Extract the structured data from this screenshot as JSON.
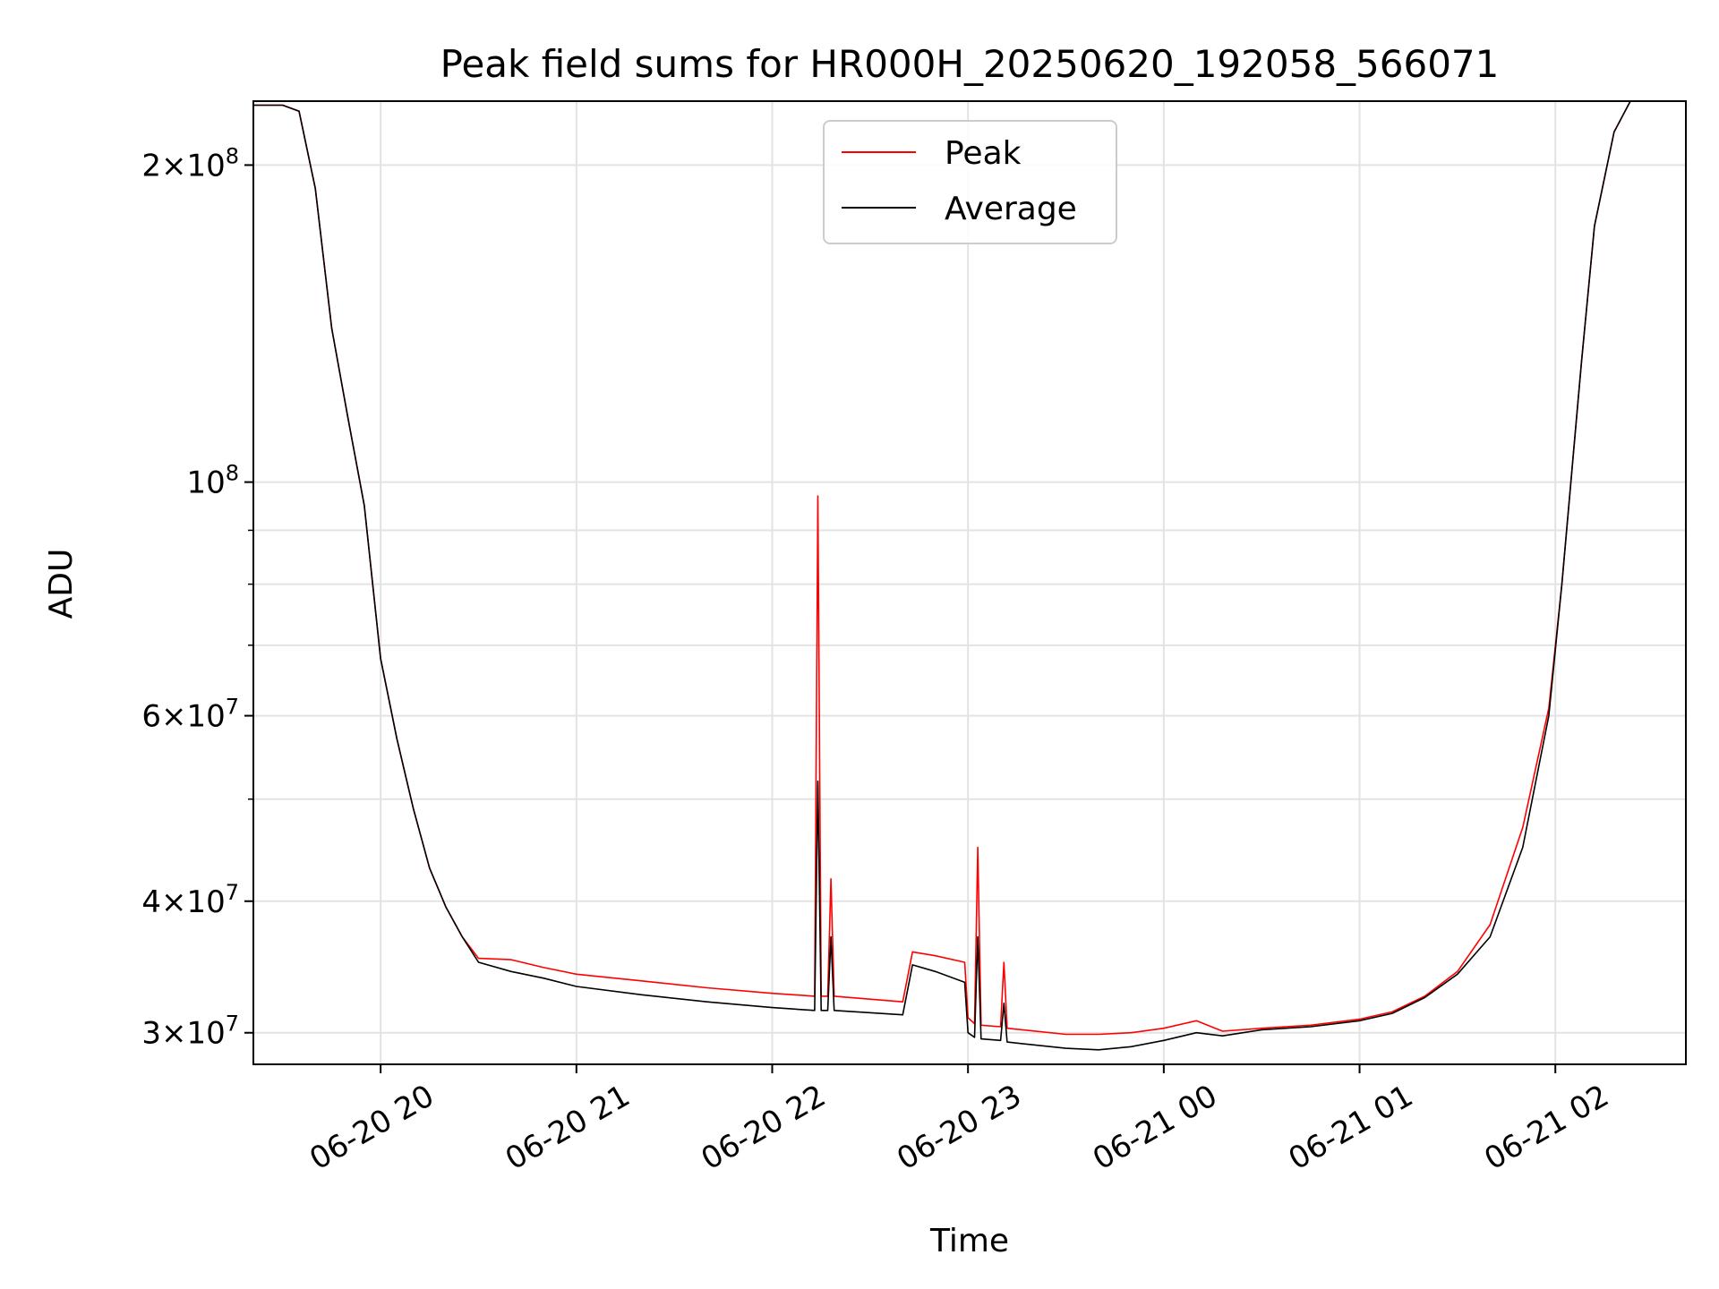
{
  "chart_data": {
    "type": "line",
    "title": "Peak field sums for HR000H_20250620_192058_566071",
    "xlabel": "Time",
    "ylabel": "ADU",
    "yscale": "log",
    "grid": true,
    "legend_placement": "upper center",
    "xlim": [
      "2025-06-20 19:21",
      "2025-06-21 02:40"
    ],
    "ylim": [
      28000000,
      230000000
    ],
    "x_ticks": [
      {
        "value": "2025-06-20 20:00",
        "label": "06-20 20"
      },
      {
        "value": "2025-06-20 21:00",
        "label": "06-20 21"
      },
      {
        "value": "2025-06-20 22:00",
        "label": "06-20 22"
      },
      {
        "value": "2025-06-20 23:00",
        "label": "06-20 23"
      },
      {
        "value": "2025-06-21 00:00",
        "label": "06-21 00"
      },
      {
        "value": "2025-06-21 01:00",
        "label": "06-21 01"
      },
      {
        "value": "2025-06-21 02:00",
        "label": "06-21 02"
      }
    ],
    "y_ticks": [
      {
        "value": 30000000,
        "mantissa": "3",
        "exp": "7"
      },
      {
        "value": 40000000,
        "mantissa": "4",
        "exp": "7"
      },
      {
        "value": 60000000,
        "mantissa": "6",
        "exp": "7"
      },
      {
        "value": 100000000,
        "mantissa": "",
        "exp": "8"
      },
      {
        "value": 200000000,
        "mantissa": "2",
        "exp": "8"
      }
    ],
    "series": [
      {
        "name": "Peak",
        "color": "#ff0000",
        "points": [
          [
            "2025-06-20 19:21",
            228000000
          ],
          [
            "2025-06-20 19:30",
            228000000
          ],
          [
            "2025-06-20 19:35",
            225000000
          ],
          [
            "2025-06-20 19:40",
            190000000
          ],
          [
            "2025-06-20 19:45",
            140000000
          ],
          [
            "2025-06-20 19:50",
            115000000
          ],
          [
            "2025-06-20 19:55",
            95000000
          ],
          [
            "2025-06-20 20:00",
            68000000
          ],
          [
            "2025-06-20 20:05",
            57000000
          ],
          [
            "2025-06-20 20:10",
            49000000
          ],
          [
            "2025-06-20 20:15",
            43000000
          ],
          [
            "2025-06-20 20:20",
            39500000
          ],
          [
            "2025-06-20 20:25",
            37000000
          ],
          [
            "2025-06-20 20:30",
            35300000
          ],
          [
            "2025-06-20 20:40",
            35200000
          ],
          [
            "2025-06-20 20:50",
            34600000
          ],
          [
            "2025-06-20 21:00",
            34100000
          ],
          [
            "2025-06-20 21:20",
            33600000
          ],
          [
            "2025-06-20 21:40",
            33100000
          ],
          [
            "2025-06-20 22:00",
            32700000
          ],
          [
            "2025-06-20 22:13",
            32500000
          ],
          [
            "2025-06-20 22:14",
            97000000
          ],
          [
            "2025-06-20 22:15",
            32500000
          ],
          [
            "2025-06-20 22:17",
            32500000
          ],
          [
            "2025-06-20 22:18",
            42000000
          ],
          [
            "2025-06-20 22:19",
            32500000
          ],
          [
            "2025-06-20 22:40",
            32100000
          ],
          [
            "2025-06-20 22:43",
            35800000
          ],
          [
            "2025-06-20 22:50",
            35500000
          ],
          [
            "2025-06-20 22:59",
            35000000
          ],
          [
            "2025-06-20 23:00",
            31000000
          ],
          [
            "2025-06-20 23:02",
            30600000
          ],
          [
            "2025-06-20 23:03",
            45000000
          ],
          [
            "2025-06-20 23:04",
            30500000
          ],
          [
            "2025-06-20 23:10",
            30400000
          ],
          [
            "2025-06-20 23:11",
            35000000
          ],
          [
            "2025-06-20 23:12",
            30300000
          ],
          [
            "2025-06-20 23:30",
            29900000
          ],
          [
            "2025-06-20 23:40",
            29900000
          ],
          [
            "2025-06-20 23:50",
            30000000
          ],
          [
            "2025-06-21 00:00",
            30300000
          ],
          [
            "2025-06-21 00:10",
            30800000
          ],
          [
            "2025-06-21 00:18",
            30100000
          ],
          [
            "2025-06-21 00:30",
            30300000
          ],
          [
            "2025-06-21 00:45",
            30500000
          ],
          [
            "2025-06-21 01:00",
            30900000
          ],
          [
            "2025-06-21 01:10",
            31400000
          ],
          [
            "2025-06-21 01:20",
            32500000
          ],
          [
            "2025-06-21 01:30",
            34300000
          ],
          [
            "2025-06-21 01:40",
            38000000
          ],
          [
            "2025-06-21 01:50",
            47000000
          ],
          [
            "2025-06-21 01:58",
            61000000
          ],
          [
            "2025-06-21 02:02",
            80000000
          ],
          [
            "2025-06-21 02:08",
            130000000
          ],
          [
            "2025-06-21 02:12",
            175000000
          ],
          [
            "2025-06-21 02:18",
            215000000
          ],
          [
            "2025-06-21 02:23",
            230000000
          ],
          [
            "2025-06-21 02:40",
            230000000
          ]
        ]
      },
      {
        "name": "Average",
        "color": "#000000",
        "points": [
          [
            "2025-06-20 19:21",
            228000000
          ],
          [
            "2025-06-20 19:30",
            228000000
          ],
          [
            "2025-06-20 19:35",
            225000000
          ],
          [
            "2025-06-20 19:40",
            190000000
          ],
          [
            "2025-06-20 19:45",
            140000000
          ],
          [
            "2025-06-20 19:50",
            115000000
          ],
          [
            "2025-06-20 19:55",
            95000000
          ],
          [
            "2025-06-20 20:00",
            68000000
          ],
          [
            "2025-06-20 20:05",
            57000000
          ],
          [
            "2025-06-20 20:10",
            49000000
          ],
          [
            "2025-06-20 20:15",
            43000000
          ],
          [
            "2025-06-20 20:20",
            39500000
          ],
          [
            "2025-06-20 20:25",
            37000000
          ],
          [
            "2025-06-20 20:30",
            35000000
          ],
          [
            "2025-06-20 20:40",
            34300000
          ],
          [
            "2025-06-20 20:50",
            33800000
          ],
          [
            "2025-06-20 21:00",
            33200000
          ],
          [
            "2025-06-20 21:20",
            32600000
          ],
          [
            "2025-06-20 21:40",
            32100000
          ],
          [
            "2025-06-20 22:00",
            31700000
          ],
          [
            "2025-06-20 22:13",
            31500000
          ],
          [
            "2025-06-20 22:14",
            52000000
          ],
          [
            "2025-06-20 22:15",
            31500000
          ],
          [
            "2025-06-20 22:17",
            31500000
          ],
          [
            "2025-06-20 22:18",
            37000000
          ],
          [
            "2025-06-20 22:19",
            31500000
          ],
          [
            "2025-06-20 22:40",
            31200000
          ],
          [
            "2025-06-20 22:43",
            34800000
          ],
          [
            "2025-06-20 22:50",
            34300000
          ],
          [
            "2025-06-20 22:59",
            33500000
          ],
          [
            "2025-06-20 23:00",
            30000000
          ],
          [
            "2025-06-20 23:02",
            29700000
          ],
          [
            "2025-06-20 23:03",
            37000000
          ],
          [
            "2025-06-20 23:04",
            29600000
          ],
          [
            "2025-06-20 23:10",
            29500000
          ],
          [
            "2025-06-20 23:11",
            32000000
          ],
          [
            "2025-06-20 23:12",
            29400000
          ],
          [
            "2025-06-20 23:30",
            29000000
          ],
          [
            "2025-06-20 23:40",
            28900000
          ],
          [
            "2025-06-20 23:50",
            29100000
          ],
          [
            "2025-06-21 00:00",
            29500000
          ],
          [
            "2025-06-21 00:10",
            30000000
          ],
          [
            "2025-06-21 00:18",
            29800000
          ],
          [
            "2025-06-21 00:30",
            30200000
          ],
          [
            "2025-06-21 00:45",
            30400000
          ],
          [
            "2025-06-21 01:00",
            30800000
          ],
          [
            "2025-06-21 01:10",
            31300000
          ],
          [
            "2025-06-21 01:20",
            32400000
          ],
          [
            "2025-06-21 01:30",
            34100000
          ],
          [
            "2025-06-21 01:40",
            37000000
          ],
          [
            "2025-06-21 01:50",
            45000000
          ],
          [
            "2025-06-21 01:58",
            60000000
          ],
          [
            "2025-06-21 02:02",
            80000000
          ],
          [
            "2025-06-21 02:08",
            130000000
          ],
          [
            "2025-06-21 02:12",
            175000000
          ],
          [
            "2025-06-21 02:18",
            215000000
          ],
          [
            "2025-06-21 02:23",
            230000000
          ],
          [
            "2025-06-21 02:40",
            230000000
          ]
        ]
      }
    ]
  }
}
